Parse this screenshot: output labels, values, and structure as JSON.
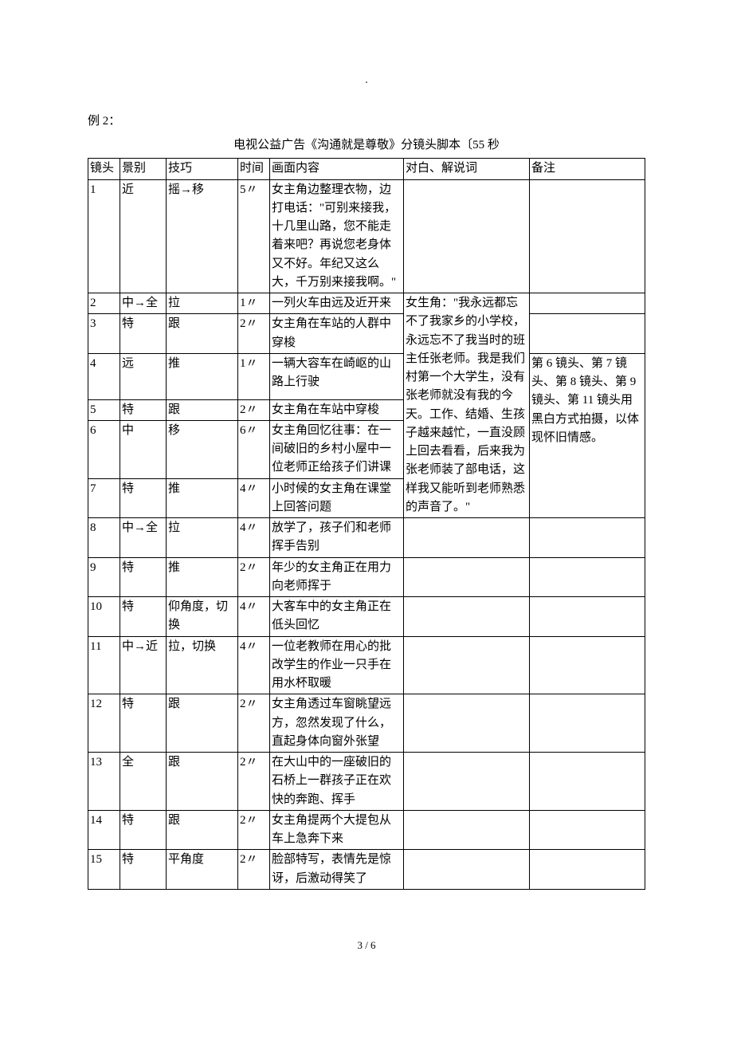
{
  "dot": ".",
  "example_label": "例 2：",
  "title": "电视公益广告《沟通就是尊敬》分镜头脚本〔55 秒",
  "headers": {
    "shot": "镜头",
    "scene": "景别",
    "tech": "技巧",
    "time": "时间",
    "content": "画面内容",
    "dialog": "对白、解说词",
    "note": "备注"
  },
  "continuous_dialog_start": 2,
  "continuous_dialog_end": 7,
  "continuous_dialog_text": "女生角：\"我永远都忘不了我家乡的小学校，永远忘不了我当时的班主任张老师。我是我们村第一个大学生，没有张老师就没有我的今天。工作、结婚、生孩子越来越忙，一直没顾上回去看看，后来我为张老师装了部电话，这样我又能听到老师熟悉的声音了。\"",
  "continuous_note_start": 4,
  "continuous_note_end": 7,
  "continuous_note_text": "第 6 镜头、第 7 镜头、第 8 镜头、第 9 镜头、第 11 镜头用黑白方式拍摄，以体现怀旧情感。",
  "rows": [
    {
      "shot": "1",
      "scene": "近",
      "tech": "摇→移",
      "time": "5〃",
      "content": "女主角边整理衣物，边打电话：\"可别来接我，十几里山路，您不能走着来吧？再说您老身体又不好。年纪又这么大，千万别来接我啊。\"",
      "dialog": "",
      "note": ""
    },
    {
      "shot": "2",
      "scene": "中→全",
      "tech": "拉",
      "time": "1〃",
      "content": "一列火车由远及近开来",
      "dialog": "",
      "note": ""
    },
    {
      "shot": "3",
      "scene": "特",
      "tech": "跟",
      "time": "2〃",
      "content": "女主角在车站的人群中穿梭",
      "dialog": "",
      "note": ""
    },
    {
      "shot": "4",
      "scene": "远",
      "tech": "推",
      "time": "1〃",
      "content": "一辆大容车在崎岖的山路上行驶",
      "dialog": "",
      "note": ""
    },
    {
      "shot": "5",
      "scene": "特",
      "tech": "跟",
      "time": "2〃",
      "content": "女主角在车站中穿梭",
      "dialog": "",
      "note": ""
    },
    {
      "shot": "6",
      "scene": "中",
      "tech": "移",
      "time": "6〃",
      "content": "女主角回忆往事：在一间破旧的乡村小屋中一位老师正给孩子们讲课",
      "dialog": "",
      "note": ""
    },
    {
      "shot": "7",
      "scene": "特",
      "tech": "推",
      "time": "4〃",
      "content": "小时候的女主角在课堂上回答问题",
      "dialog": "",
      "note": ""
    },
    {
      "shot": "8",
      "scene": "中→全",
      "tech": "拉",
      "time": "4〃",
      "content": "放学了，孩子们和老师挥手告别",
      "dialog": "",
      "note": ""
    },
    {
      "shot": "9",
      "scene": "特",
      "tech": "推",
      "time": "2〃",
      "content": "年少的女主角正在用力向老师挥于",
      "dialog": "",
      "note": ""
    },
    {
      "shot": "10",
      "scene": "特",
      "tech": "仰角度，切换",
      "time": "4〃",
      "content": "大客车中的女主角正在低头回忆",
      "dialog": "",
      "note": ""
    },
    {
      "shot": "11",
      "scene": "中→近",
      "tech": "拉，切换",
      "time": "4〃",
      "content": "一位老教师在用心的批改学生的作业一只手在用水杯取暖",
      "dialog": "",
      "note": ""
    },
    {
      "shot": "12",
      "scene": "特",
      "tech": "跟",
      "time": "2〃",
      "content": "女主角透过车窗眺望远方，忽然发现了什么，直起身体向窗外张望",
      "dialog": "",
      "note": ""
    },
    {
      "shot": "13",
      "scene": "全",
      "tech": "跟",
      "time": "2〃",
      "content": "在大山中的一座破旧的石桥上一群孩子正在欢快的奔跑、挥手",
      "dialog": "",
      "note": ""
    },
    {
      "shot": "14",
      "scene": "特",
      "tech": "跟",
      "time": "2〃",
      "content": "女主角提两个大提包从车上急奔下来",
      "dialog": "",
      "note": ""
    },
    {
      "shot": "15",
      "scene": "特",
      "tech": "平角度",
      "time": "2〃",
      "content": "脸部特写，表情先是惊讶，后激动得笑了",
      "dialog": "",
      "note": ""
    }
  ],
  "footer": "3 / 6"
}
